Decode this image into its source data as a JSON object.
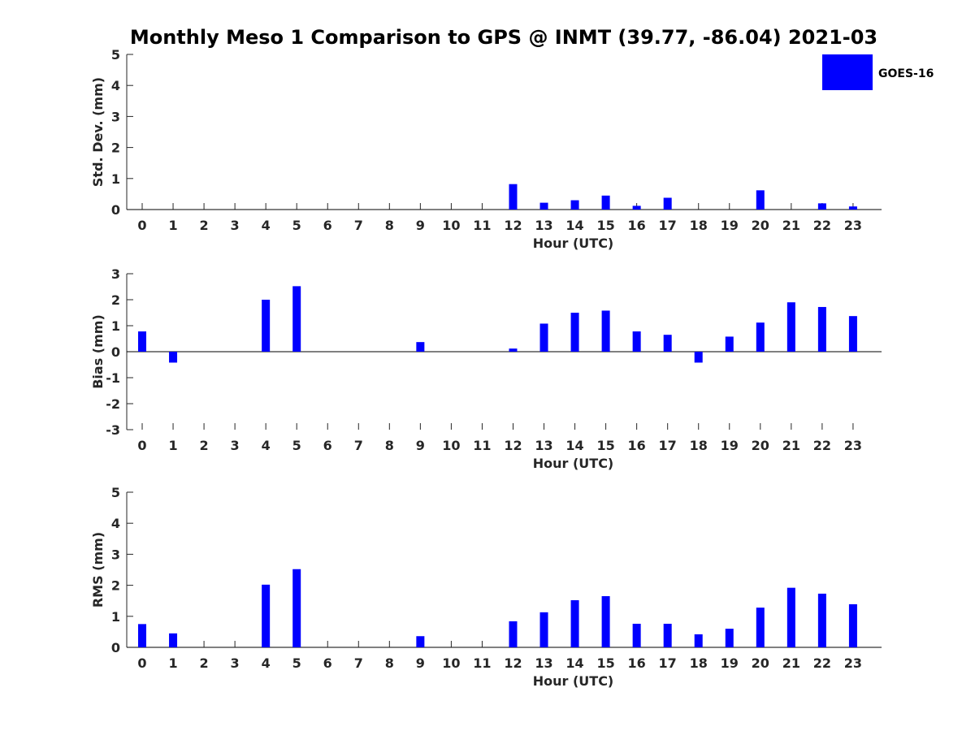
{
  "title": "Monthly Meso 1 Comparison to GPS @ INMT (39.77, -86.04) 2021-03",
  "colors": {
    "bar": "#0000ff",
    "axis": "#262626"
  },
  "chart_data": [
    {
      "type": "bar",
      "categories": [
        "0",
        "1",
        "2",
        "3",
        "4",
        "5",
        "6",
        "7",
        "8",
        "9",
        "10",
        "11",
        "12",
        "13",
        "14",
        "15",
        "16",
        "17",
        "18",
        "19",
        "20",
        "21",
        "22",
        "23"
      ],
      "series": [
        {
          "name": "GOES-16",
          "values": [
            0,
            0,
            0,
            0,
            0,
            0,
            0,
            0,
            0,
            0,
            0,
            0,
            0.82,
            0.22,
            0.3,
            0.45,
            0.12,
            0.38,
            0,
            0,
            0.62,
            0,
            0.2,
            0.1
          ]
        }
      ],
      "xlabel": "Hour (UTC)",
      "ylabel": "Std. Dev. (mm)",
      "ylim": [
        0,
        5
      ],
      "yticks": [
        "0",
        "1",
        "2",
        "3",
        "4",
        "5"
      ],
      "legend": {
        "label": "GOES-16",
        "position": "top-right"
      }
    },
    {
      "type": "bar",
      "categories": [
        "0",
        "1",
        "2",
        "3",
        "4",
        "5",
        "6",
        "7",
        "8",
        "9",
        "10",
        "11",
        "12",
        "13",
        "14",
        "15",
        "16",
        "17",
        "18",
        "19",
        "20",
        "21",
        "22",
        "23"
      ],
      "series": [
        {
          "name": "GOES-16",
          "values": [
            0.78,
            -0.42,
            0,
            0,
            2.0,
            2.52,
            0,
            0,
            0,
            0.37,
            0,
            0,
            0.12,
            1.08,
            1.5,
            1.58,
            0.78,
            0.65,
            -0.42,
            0.58,
            1.12,
            1.9,
            1.72,
            1.37
          ]
        }
      ],
      "xlabel": "Hour (UTC)",
      "ylabel": "Bias (mm)",
      "ylim": [
        -3,
        3
      ],
      "yticks": [
        "-3",
        "-2",
        "-1",
        "0",
        "1",
        "2",
        "3"
      ]
    },
    {
      "type": "bar",
      "categories": [
        "0",
        "1",
        "2",
        "3",
        "4",
        "5",
        "6",
        "7",
        "8",
        "9",
        "10",
        "11",
        "12",
        "13",
        "14",
        "15",
        "16",
        "17",
        "18",
        "19",
        "20",
        "21",
        "22",
        "23"
      ],
      "series": [
        {
          "name": "GOES-16",
          "values": [
            0.75,
            0.45,
            0,
            0,
            2.02,
            2.52,
            0,
            0,
            0,
            0.36,
            0,
            0,
            0.84,
            1.13,
            1.52,
            1.65,
            0.76,
            0.76,
            0.42,
            0.6,
            1.28,
            1.92,
            1.73,
            1.39
          ]
        }
      ],
      "xlabel": "Hour (UTC)",
      "ylabel": "RMS (mm)",
      "ylim": [
        0,
        5
      ],
      "yticks": [
        "0",
        "1",
        "2",
        "3",
        "4",
        "5"
      ]
    }
  ]
}
